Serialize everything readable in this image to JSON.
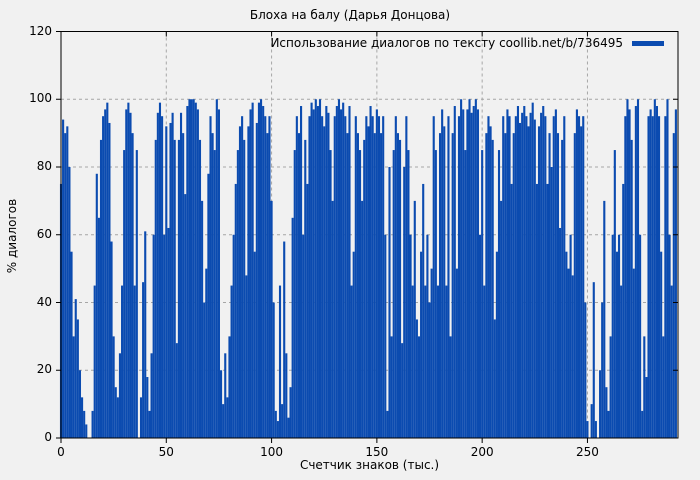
{
  "figure": {
    "title": "Блоха на балу (Дарья Донцова)",
    "xlabel": "Счетчик знаков (тыс.)",
    "ylabel": "% диалогов",
    "legend_label": "Использование диалогов по тексту coollib.net/b/736495"
  },
  "colors": {
    "background": "#f1f1f1",
    "bar": "#0b4bb0",
    "grid": "#a6a6a6",
    "frame": "#000000",
    "text": "#000000"
  },
  "chart_data": {
    "type": "bar",
    "style": "impulses",
    "title": "Блоха на балу (Дарья Донцова)",
    "xlabel": "Счетчик знаков (тыс.)",
    "ylabel": "% диалогов",
    "legend_position": "top-right",
    "grid": true,
    "xlim": [
      0,
      293
    ],
    "ylim": [
      0,
      120
    ],
    "xticks": [
      0,
      50,
      100,
      150,
      200,
      250
    ],
    "yticks": [
      0,
      20,
      40,
      60,
      80,
      100,
      120
    ],
    "x_start": 0,
    "x_step": 1,
    "series": [
      {
        "name": "Использование диалогов по тексту coollib.net/b/736495",
        "color": "#0b4bb0",
        "values": [
          75,
          94,
          90,
          92,
          80,
          55,
          30,
          41,
          35,
          20,
          12,
          8,
          4,
          0,
          0,
          8,
          45,
          78,
          65,
          88,
          95,
          97,
          99,
          93,
          58,
          30,
          15,
          12,
          25,
          45,
          85,
          97,
          99,
          96,
          90,
          45,
          85,
          0,
          12,
          46,
          61,
          18,
          8,
          25,
          60,
          88,
          96,
          99,
          95,
          60,
          92,
          62,
          93,
          96,
          88,
          28,
          88,
          96,
          90,
          72,
          98,
          100,
          100,
          100,
          99,
          97,
          88,
          70,
          40,
          50,
          78,
          95,
          90,
          85,
          100,
          97,
          20,
          10,
          25,
          12,
          30,
          45,
          60,
          75,
          85,
          92,
          95,
          88,
          48,
          92,
          97,
          99,
          55,
          93,
          99,
          100,
          98,
          95,
          90,
          95,
          70,
          40,
          8,
          5,
          45,
          10,
          58,
          25,
          6,
          15,
          65,
          85,
          95,
          90,
          98,
          60,
          88,
          75,
          95,
          99,
          97,
          100,
          98,
          100,
          95,
          92,
          98,
          96,
          85,
          70,
          95,
          98,
          100,
          97,
          99,
          95,
          90,
          98,
          45,
          55,
          95,
          90,
          85,
          70,
          88,
          95,
          92,
          98,
          95,
          90,
          97,
          95,
          90,
          95,
          60,
          8,
          80,
          30,
          85,
          95,
          90,
          88,
          28,
          80,
          95,
          85,
          60,
          45,
          70,
          35,
          30,
          55,
          75,
          45,
          60,
          40,
          50,
          95,
          85,
          45,
          90,
          97,
          92,
          45,
          95,
          30,
          90,
          98,
          50,
          95,
          100,
          97,
          85,
          97,
          100,
          96,
          98,
          100,
          97,
          60,
          85,
          45,
          90,
          95,
          92,
          88,
          35,
          55,
          85,
          70,
          95,
          90,
          97,
          95,
          75,
          90,
          95,
          98,
          93,
          96,
          98,
          95,
          92,
          96,
          99,
          94,
          75,
          92,
          96,
          98,
          95,
          75,
          90,
          80,
          95,
          97,
          90,
          62,
          88,
          95,
          55,
          50,
          60,
          48,
          90,
          97,
          95,
          92,
          95,
          40,
          5,
          0,
          10,
          46,
          5,
          0,
          20,
          40,
          70,
          15,
          8,
          30,
          60,
          85,
          55,
          60,
          45,
          75,
          95,
          100,
          97,
          88,
          50,
          98,
          100,
          60,
          8,
          30,
          18,
          95,
          97,
          95,
          100,
          98,
          95,
          55,
          30,
          95,
          100,
          60,
          45,
          90,
          97
        ]
      }
    ]
  }
}
